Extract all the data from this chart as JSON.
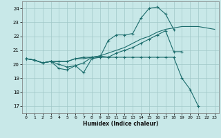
{
  "xlabel": "Humidex (Indice chaleur)",
  "xlim": [
    -0.5,
    23.5
  ],
  "ylim": [
    16.5,
    24.5
  ],
  "yticks": [
    17,
    18,
    19,
    20,
    21,
    22,
    23,
    24
  ],
  "xticks": [
    0,
    1,
    2,
    3,
    4,
    5,
    6,
    7,
    8,
    9,
    10,
    11,
    12,
    13,
    14,
    15,
    16,
    17,
    18,
    19,
    20,
    21,
    22,
    23
  ],
  "background_color": "#c8e8e8",
  "grid_color": "#a0c8c8",
  "line_color": "#1a6b6b",
  "line1_x": [
    0,
    1,
    2,
    3,
    4,
    5,
    6,
    7,
    8,
    9,
    10,
    11,
    12,
    13,
    14,
    15,
    16,
    17,
    18,
    19,
    20,
    21,
    22,
    23
  ],
  "line1_y": [
    20.4,
    20.3,
    20.1,
    20.2,
    20.2,
    20.2,
    20.4,
    20.4,
    20.5,
    20.6,
    20.8,
    21.0,
    21.2,
    21.5,
    21.8,
    22.0,
    22.3,
    22.5,
    22.6,
    22.7,
    22.7,
    22.7,
    22.6,
    22.5
  ],
  "line2_x": [
    0,
    1,
    2,
    3,
    4,
    5,
    6,
    7,
    8,
    9,
    10,
    11,
    12,
    13,
    14,
    15,
    16,
    17,
    18
  ],
  "line2_y": [
    20.4,
    20.3,
    20.1,
    20.2,
    19.7,
    19.6,
    19.9,
    19.4,
    20.4,
    20.5,
    21.7,
    22.1,
    22.1,
    22.2,
    23.3,
    24.0,
    24.1,
    23.6,
    22.5
  ],
  "line3_x": [
    0,
    1,
    2,
    3,
    4,
    5,
    6,
    7,
    8,
    9,
    10,
    11,
    12,
    13,
    14,
    15,
    16,
    17,
    18,
    19
  ],
  "line3_y": [
    20.4,
    20.3,
    20.1,
    20.2,
    20.0,
    19.8,
    19.9,
    20.1,
    20.5,
    20.6,
    20.5,
    20.8,
    21.0,
    21.2,
    21.5,
    21.8,
    22.1,
    22.4,
    20.9,
    20.9
  ],
  "line4_x": [
    0,
    1,
    2,
    3,
    4,
    5,
    6,
    7,
    8,
    9,
    10,
    11,
    12,
    13,
    14,
    15,
    16,
    17,
    18,
    19,
    20,
    21,
    22,
    23
  ],
  "line4_y": [
    20.4,
    20.3,
    20.1,
    20.2,
    20.2,
    20.2,
    20.4,
    20.5,
    20.5,
    20.5,
    20.5,
    20.5,
    20.5,
    20.5,
    20.5,
    20.5,
    20.5,
    20.5,
    20.5,
    19.0,
    18.2,
    17.0,
    null,
    null
  ]
}
